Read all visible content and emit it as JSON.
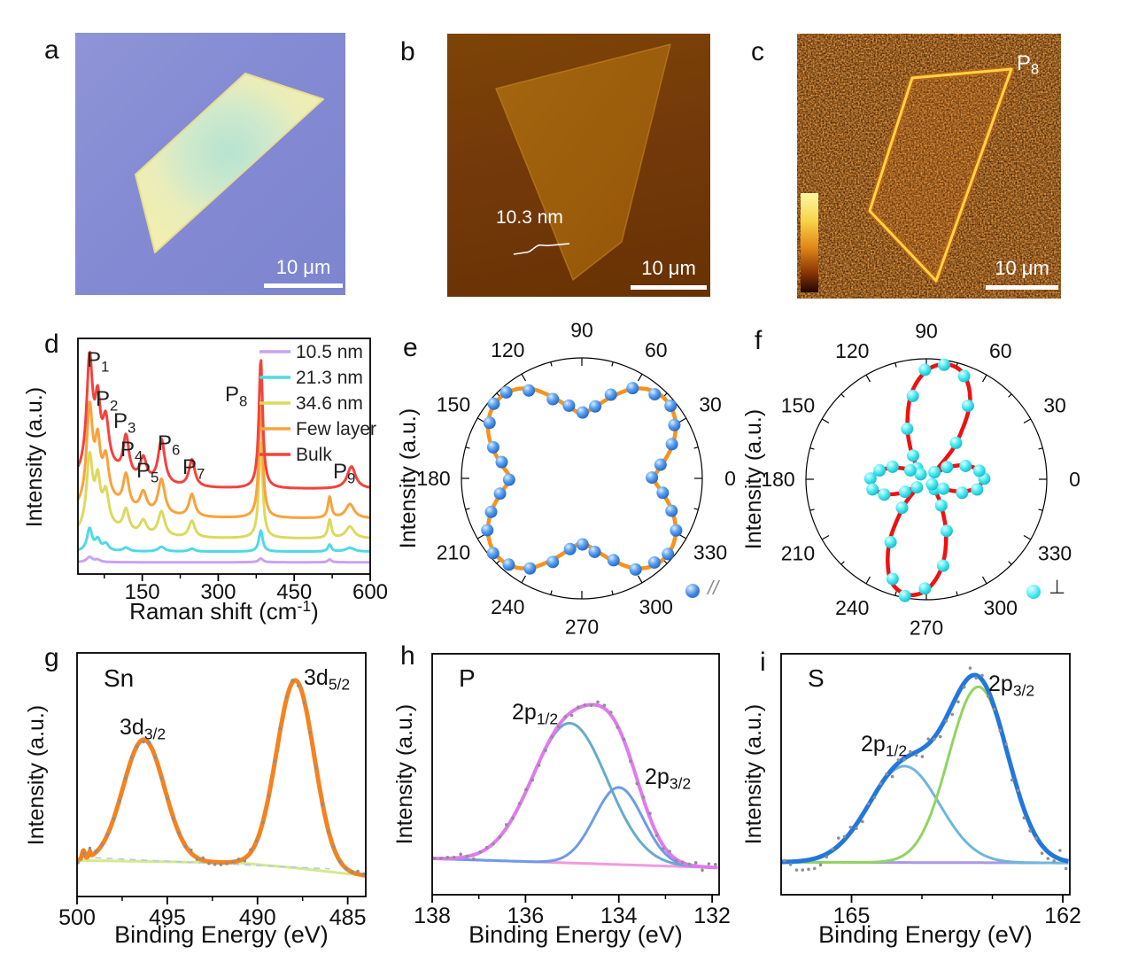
{
  "panels": {
    "a": {
      "letter": "a",
      "scalebar": "10 μm",
      "description": "optical-microscope-image"
    },
    "b": {
      "letter": "b",
      "scalebar": "10 μm",
      "height_label": "10.3 nm",
      "description": "afm-image"
    },
    "c": {
      "letter": "c",
      "scalebar": "10 μm",
      "peak_label": {
        "main": "P",
        "sub": "8"
      },
      "colorbar_colors": [
        "#fdf7a2",
        "#f7d448",
        "#e08617",
        "#8a3505",
        "#200701"
      ],
      "description": "raman-mapping-image"
    },
    "d": {
      "letter": "d",
      "chart_data": {
        "type": "line",
        "xlabel_pre": "Raman shift (cm",
        "xlabel_sup": "-1",
        "xlabel_post": ")",
        "ylabel": "Intensity (a.u.)",
        "xrange": [
          23,
          600
        ],
        "xticks": [
          150,
          300,
          450,
          600
        ],
        "xticks_minor": [
          75,
          225,
          375,
          525
        ],
        "legend_position": "top-right",
        "peak_positions": {
          "P1": 46,
          "P2": 62,
          "P3": 78,
          "P4": 118,
          "P5": 152,
          "P6": 188,
          "P7": 248,
          "P8": 384,
          "P9": 563,
          "Si": 520
        },
        "peak_labels": [
          {
            "main": "P",
            "sub": "1",
            "x": 10,
            "y": 32
          },
          {
            "main": "P",
            "sub": "2",
            "x": 20,
            "y": 76
          },
          {
            "main": "P",
            "sub": "3",
            "x": 40,
            "y": 101
          },
          {
            "main": "P",
            "sub": "4",
            "x": 48,
            "y": 133
          },
          {
            "main": "P",
            "sub": "5",
            "x": 66,
            "y": 157
          },
          {
            "main": "P",
            "sub": "6",
            "x": 90,
            "y": 126
          },
          {
            "main": "P",
            "sub": "7",
            "x": 118,
            "y": 153
          },
          {
            "main": "P",
            "sub": "8",
            "x": 166,
            "y": 71
          },
          {
            "main": "P",
            "sub": "9",
            "x": 288,
            "y": 158
          }
        ],
        "series": [
          {
            "name": "10.5 nm",
            "color": "#c9a2f2",
            "offset": 0.05,
            "peaks": [
              [
                46,
                7,
                0.022
              ],
              [
                62,
                6,
                0.01
              ],
              [
                384,
                5,
                0.016
              ],
              [
                520,
                4,
                0.012
              ]
            ]
          },
          {
            "name": "21.3 nm",
            "color": "#4fd9e9",
            "offset": 0.095,
            "peaks": [
              [
                46,
                6,
                0.095
              ],
              [
                62,
                6,
                0.045
              ],
              [
                78,
                7,
                0.03
              ],
              [
                118,
                7,
                0.016
              ],
              [
                188,
                8,
                0.02
              ],
              [
                248,
                7,
                0.012
              ],
              [
                384,
                4.5,
                0.09
              ],
              [
                520,
                4,
                0.03
              ],
              [
                560,
                10,
                0.016
              ]
            ]
          },
          {
            "name": "34.6 nm",
            "color": "#dcd95d",
            "offset": 0.15,
            "peaks": [
              [
                46,
                7,
                0.3
              ],
              [
                62,
                6,
                0.17
              ],
              [
                78,
                7,
                0.13
              ],
              [
                118,
                7,
                0.095
              ],
              [
                152,
                8,
                0.06
              ],
              [
                188,
                8,
                0.105
              ],
              [
                248,
                7,
                0.07
              ],
              [
                384,
                4.5,
                0.41
              ],
              [
                520,
                4,
                0.08
              ],
              [
                560,
                10,
                0.05
              ],
              [
                70,
                40,
                0.055
              ]
            ]
          },
          {
            "name": "Few layer",
            "color": "#f9a23c",
            "offset": 0.235,
            "peaks": [
              [
                46,
                7,
                0.4
              ],
              [
                62,
                6,
                0.21
              ],
              [
                78,
                7,
                0.16
              ],
              [
                118,
                7,
                0.14
              ],
              [
                152,
                8,
                0.085
              ],
              [
                188,
                8,
                0.15
              ],
              [
                248,
                7,
                0.095
              ],
              [
                384,
                4.5,
                0.5
              ],
              [
                520,
                4,
                0.09
              ],
              [
                560,
                10,
                0.06
              ],
              [
                70,
                45,
                0.08
              ]
            ]
          },
          {
            "name": "Bulk",
            "color": "#f2433c",
            "offset": 0.36,
            "peaks": [
              [
                46,
                7,
                0.47
              ],
              [
                62,
                6,
                0.24
              ],
              [
                78,
                7,
                0.18
              ],
              [
                118,
                7,
                0.17
              ],
              [
                152,
                8,
                0.1
              ],
              [
                188,
                8,
                0.19
              ],
              [
                248,
                7,
                0.115
              ],
              [
                384,
                4.5,
                0.55
              ],
              [
                563,
                10,
                0.095
              ],
              [
                70,
                45,
                0.095
              ]
            ]
          }
        ]
      }
    },
    "e": {
      "letter": "e",
      "chart_data": {
        "type": "polar",
        "ylabel": "Intensity (a.u.)",
        "angle_ticks": [
          0,
          30,
          60,
          90,
          120,
          150,
          180,
          210,
          240,
          270,
          300,
          330
        ],
        "series": [
          {
            "name": "//",
            "curve_color": "#f6921e",
            "point_color": "#2e7fe0",
            "theta_step": 10,
            "r": [
              0.6,
              0.68,
              0.8,
              0.9,
              0.95,
              0.94,
              0.86,
              0.72,
              0.6,
              0.54,
              0.6,
              0.72,
              0.86,
              0.94,
              0.95,
              0.9,
              0.8,
              0.68,
              0.6,
              0.68,
              0.8,
              0.9,
              0.95,
              0.94,
              0.86,
              0.72,
              0.6,
              0.54,
              0.6,
              0.72,
              0.86,
              0.94,
              0.95,
              0.9,
              0.8,
              0.68
            ]
          }
        ],
        "legend_label": "//"
      }
    },
    "f": {
      "letter": "f",
      "chart_data": {
        "type": "polar",
        "ylabel": "Intensity (a.u.)",
        "angle_ticks": [
          0,
          30,
          60,
          90,
          120,
          150,
          180,
          210,
          240,
          270,
          300,
          330
        ],
        "series": [
          {
            "name": "⊥",
            "curve_color": "#ee1111",
            "point_color": "#2ee4ee",
            "theta_step": 10,
            "r": [
              0.47,
              0.44,
              0.34,
              0.2,
              0.1,
              0.38,
              0.72,
              0.92,
              0.97,
              0.9,
              0.72,
              0.46,
              0.24,
              0.1,
              0.08,
              0.16,
              0.28,
              0.4,
              0.45,
              0.44,
              0.36,
              0.22,
              0.1,
              0.3,
              0.62,
              0.88,
              0.97,
              0.92,
              0.74,
              0.48,
              0.24,
              0.1,
              0.08,
              0.16,
              0.3,
              0.42
            ]
          }
        ],
        "legend_label": "⊥"
      }
    },
    "g": {
      "letter": "g",
      "chart_data": {
        "type": "xps-line",
        "element_label": "Sn",
        "xlabel": "Binding Energy (eV)",
        "ylabel": "Intensity (a.u.)",
        "xrange": [
          500,
          484
        ],
        "xticks": [
          500,
          495,
          490,
          485
        ],
        "xticks_minor": [
          497.5,
          492.5,
          487.5
        ],
        "envelope_color": "#f58220",
        "baseline_color": "#d6e98b",
        "dot_color": "#8f8f8f",
        "baseline_points": [
          [
            500,
            0.148
          ],
          [
            491,
            0.138
          ],
          [
            488,
            0.118
          ],
          [
            484,
            0.085
          ]
        ],
        "components": [
          {
            "name": "3d3/2",
            "center": 496.3,
            "sigma": 1.15,
            "height": 0.5
          },
          {
            "name": "3d5/2",
            "center": 487.9,
            "sigma": 1.05,
            "height": 0.77
          }
        ],
        "envelope_extra": [
          [
            499.65,
            0.07,
            0.035
          ],
          [
            499.3,
            0.05,
            0.022
          ]
        ],
        "aux_line": {
          "from": 499,
          "to": 486,
          "offset": 0.012,
          "color": "#a8cce8"
        },
        "annotations": [
          {
            "main": "3d",
            "sub": "3/2",
            "x": 48,
            "y": 92
          },
          {
            "main": "3d",
            "sub": "5/2",
            "x": 256,
            "y": 36
          }
        ],
        "noise": {
          "seed": 7,
          "step": 0.33,
          "amp": 0.013
        },
        "env_width": 5
      }
    },
    "h": {
      "letter": "h",
      "chart_data": {
        "type": "xps-line",
        "element_label": "P",
        "xlabel": "Binding Energy (eV)",
        "ylabel": "Intensity (a.u.)",
        "xrange": [
          138,
          131.85
        ],
        "xticks": [
          138,
          136,
          134,
          132
        ],
        "xticks_minor": [
          137,
          135,
          133
        ],
        "envelope_color": "#df7af0",
        "baseline_color": "#f09ae0",
        "dot_color": "#8f8f8f",
        "baseline_points": [
          [
            138,
            0.15
          ],
          [
            131.85,
            0.112
          ]
        ],
        "components": [
          {
            "name": "2p1/2",
            "center": 135.05,
            "sigma": 0.8,
            "height": 0.58,
            "color": "#68aacd"
          },
          {
            "name": "2p3/2",
            "center": 134.0,
            "sigma": 0.52,
            "height": 0.32,
            "color": "#6f9be6"
          }
        ],
        "annotations": [
          {
            "main": "2p",
            "sub": "1/2",
            "x": 90,
            "y": 74
          },
          {
            "main": "2p",
            "sub": "3/2",
            "x": 240,
            "y": 147
          }
        ],
        "noise": {
          "seed": 11,
          "step": 0.14,
          "amp": 0.02
        },
        "env_width": 4,
        "comp_width": 3
      }
    },
    "i": {
      "letter": "i",
      "chart_data": {
        "type": "xps-line",
        "element_label": "S",
        "xlabel": "Binding Energy (eV)",
        "ylabel": "Intensity (a.u.)",
        "xrange": [
          166,
          161.9
        ],
        "xticks": [
          165,
          162
        ],
        "xticks_minor": [
          164,
          163
        ],
        "envelope_color": "#2277dd",
        "baseline_color": "#a898e8",
        "dot_color": "#8f8f8f",
        "baseline_points": [
          [
            166,
            0.135
          ],
          [
            161.9,
            0.132
          ]
        ],
        "components": [
          {
            "name": "2p1/2",
            "center": 164.25,
            "sigma": 0.5,
            "height": 0.4,
            "color": "#6fb6dd"
          },
          {
            "name": "2p3/2",
            "center": 163.2,
            "sigma": 0.42,
            "height": 0.73,
            "color": "#91d45f"
          }
        ],
        "annotations": [
          {
            "main": "2p",
            "sub": "1/2",
            "x": 90,
            "y": 110
          },
          {
            "main": "2p",
            "sub": "3/2",
            "x": 234,
            "y": 42
          }
        ],
        "noise": {
          "seed": 13,
          "step": 0.085,
          "amp": 0.042
        },
        "env_width": 5,
        "comp_width": 3
      }
    }
  }
}
